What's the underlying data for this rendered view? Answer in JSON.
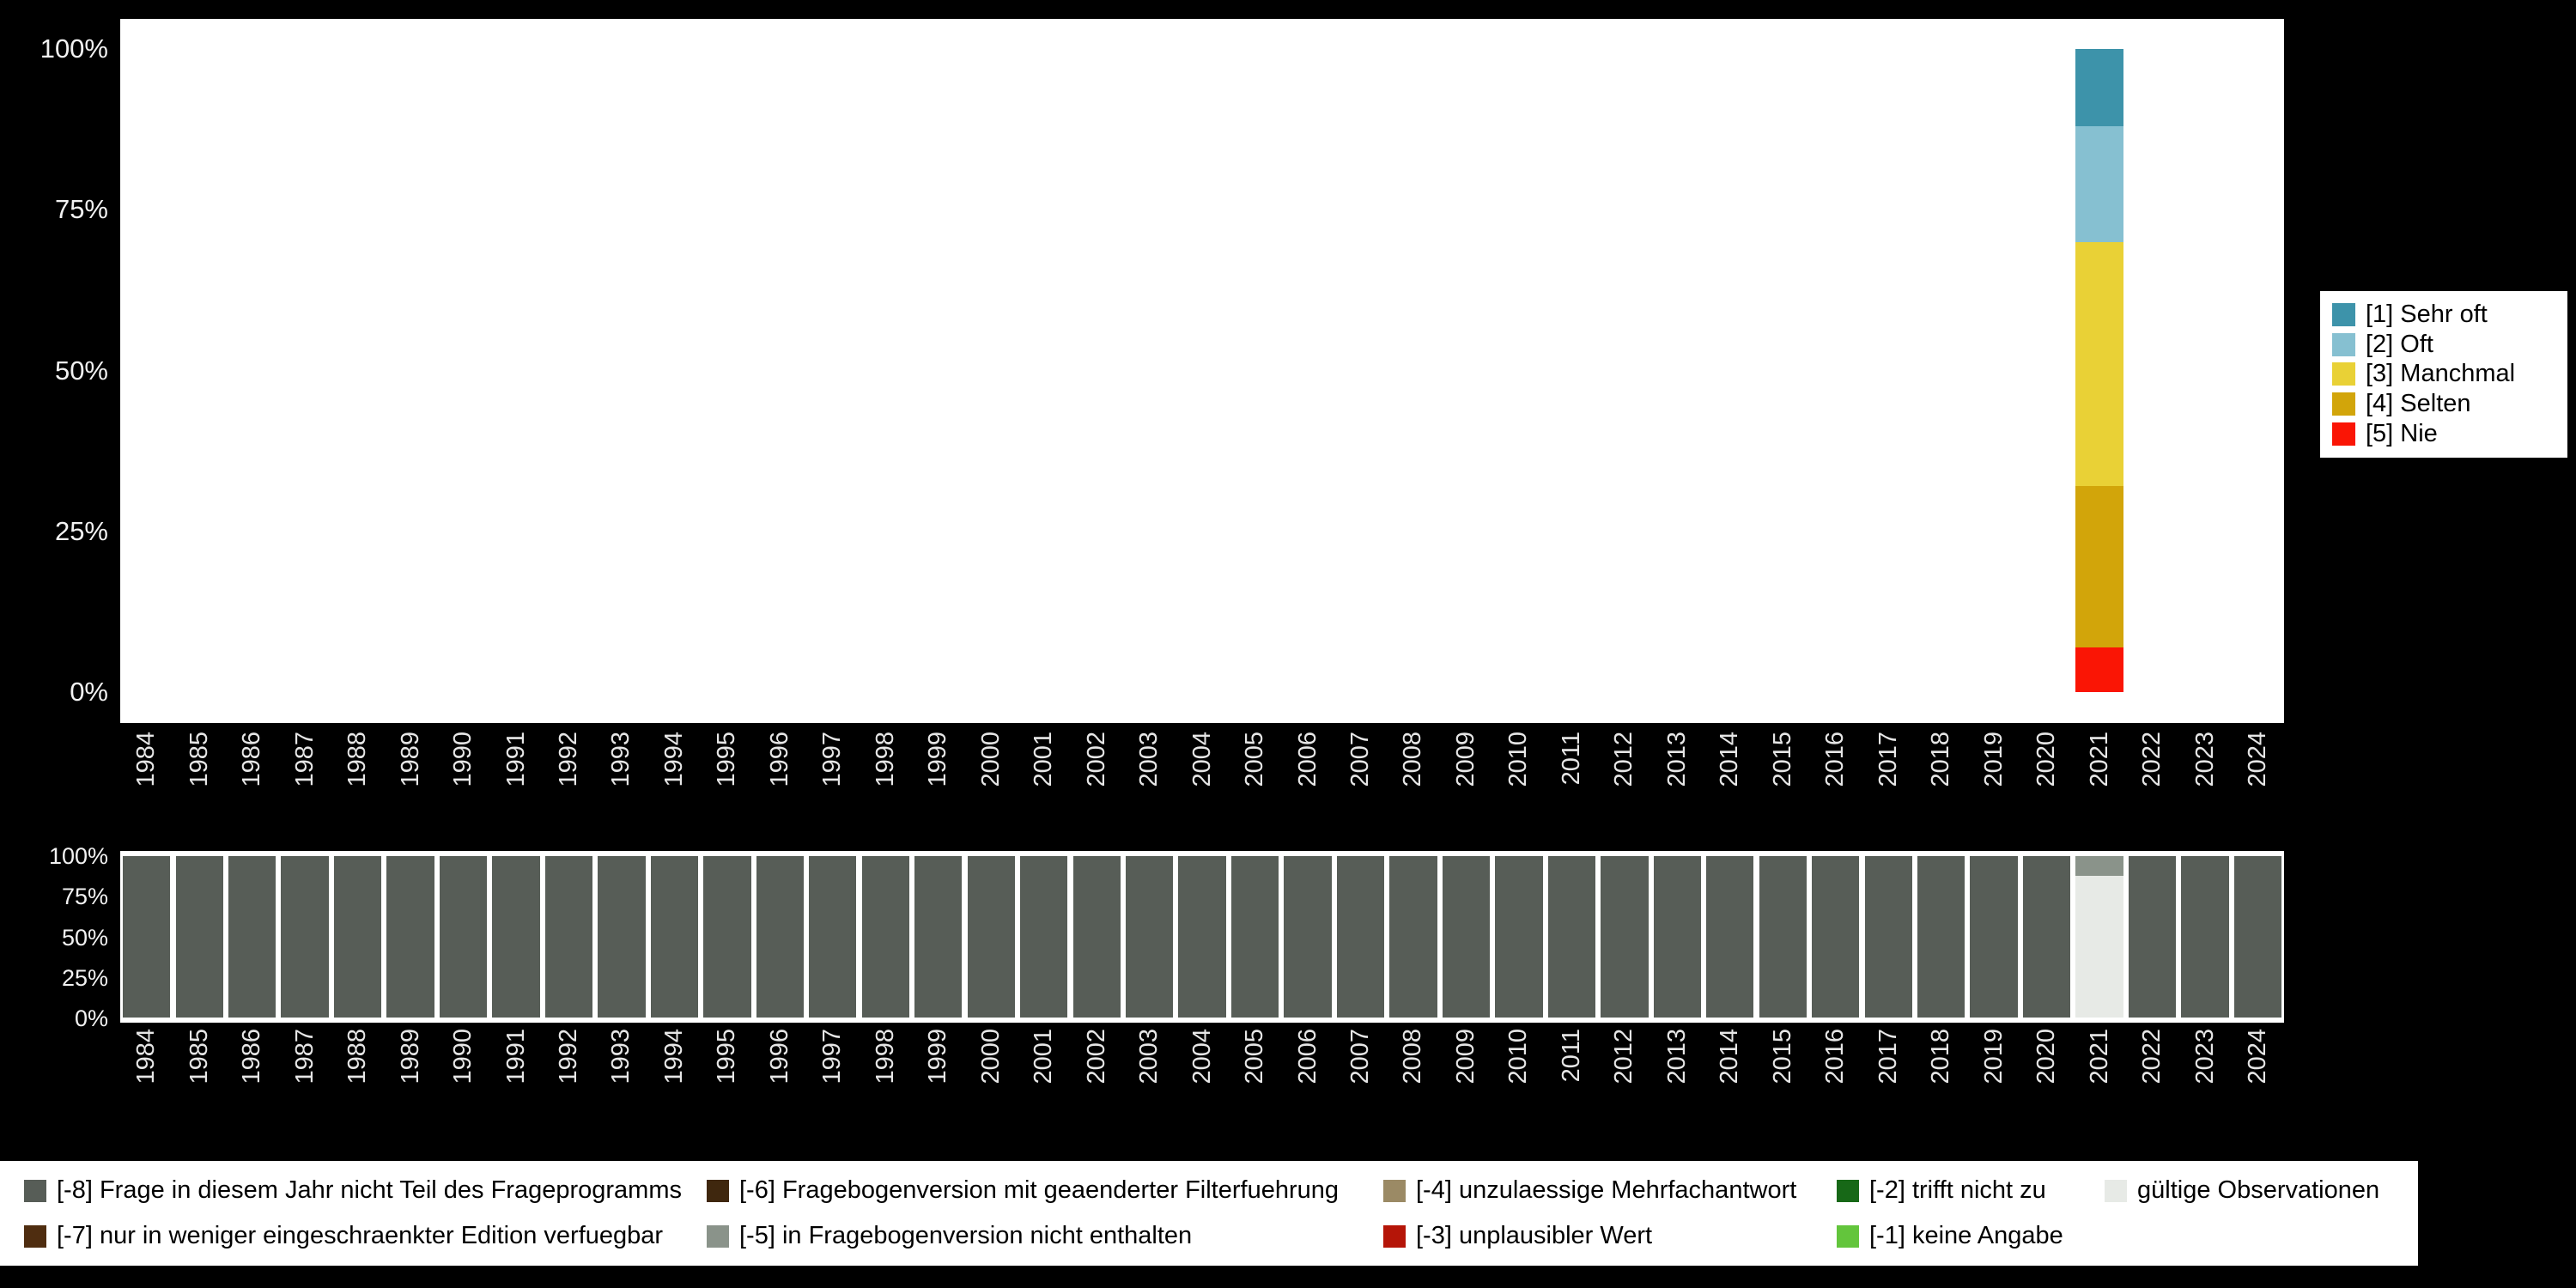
{
  "page": {
    "background": "#000000"
  },
  "axes": {
    "y_ticks": [
      "100%",
      "75%",
      "50%",
      "25%",
      "0%"
    ]
  },
  "chart_data": [
    {
      "type": "bar",
      "stacked": true,
      "title": "",
      "xlabel": "",
      "ylabel": "",
      "ylim": [
        0,
        100
      ],
      "y_tick_percents": [
        0,
        25,
        50,
        75,
        100
      ],
      "grid": false,
      "legend_position": "right",
      "x": [
        "1984",
        "1985",
        "1986",
        "1987",
        "1988",
        "1989",
        "1990",
        "1991",
        "1992",
        "1993",
        "1994",
        "1995",
        "1996",
        "1997",
        "1998",
        "1999",
        "2000",
        "2001",
        "2002",
        "2003",
        "2004",
        "2005",
        "2006",
        "2007",
        "2008",
        "2009",
        "2010",
        "2011",
        "2012",
        "2013",
        "2014",
        "2015",
        "2016",
        "2017",
        "2018",
        "2019",
        "2020",
        "2021",
        "2022",
        "2023",
        "2024"
      ],
      "series": [
        {
          "name": "[1] Sehr oft",
          "color": "#3d93aa",
          "default": 0,
          "values_by_year": {
            "2021": 12
          }
        },
        {
          "name": "[2] Oft",
          "color": "#86c0d1",
          "default": 0,
          "values_by_year": {
            "2021": 18
          }
        },
        {
          "name": "[3] Manchmal",
          "color": "#e9d136",
          "default": 0,
          "values_by_year": {
            "2021": 38
          }
        },
        {
          "name": "[4] Selten",
          "color": "#d2a50a",
          "default": 0,
          "values_by_year": {
            "2021": 25
          }
        },
        {
          "name": "[5] Nie",
          "color": "#fa1505",
          "default": 0,
          "values_by_year": {
            "2021": 7
          }
        }
      ]
    },
    {
      "type": "bar",
      "stacked": true,
      "title": "",
      "xlabel": "",
      "ylabel": "",
      "ylim": [
        0,
        100
      ],
      "y_tick_percents": [
        0,
        25,
        50,
        75,
        100
      ],
      "grid": false,
      "legend_position": "bottom",
      "x": [
        "1984",
        "1985",
        "1986",
        "1987",
        "1988",
        "1989",
        "1990",
        "1991",
        "1992",
        "1993",
        "1994",
        "1995",
        "1996",
        "1997",
        "1998",
        "1999",
        "2000",
        "2001",
        "2002",
        "2003",
        "2004",
        "2005",
        "2006",
        "2007",
        "2008",
        "2009",
        "2010",
        "2011",
        "2012",
        "2013",
        "2014",
        "2015",
        "2016",
        "2017",
        "2018",
        "2019",
        "2020",
        "2021",
        "2022",
        "2023",
        "2024"
      ],
      "series": [
        {
          "name": "[-8] Frage in diesem Jahr nicht Teil des Frageprogramms",
          "color": "#575d57",
          "default": 100,
          "values_by_year": {
            "2021": 0
          }
        },
        {
          "name": "[-5] in Fragebogenversion nicht enthalten",
          "color": "#8a938a",
          "default": 0,
          "values_by_year": {
            "2021": 12
          }
        },
        {
          "name": "gültige Observationen",
          "color": "#e7eae6",
          "default": 0,
          "values_by_year": {
            "2021": 88
          }
        }
      ]
    }
  ],
  "missings_legend": {
    "columns": [
      [
        {
          "label": "[-8] Frage in diesem Jahr nicht Teil des Frageprogramms",
          "color": "#575d57"
        },
        {
          "label": "[-7] nur in weniger eingeschraenkter Edition verfuegbar",
          "color": "#4f2d10"
        }
      ],
      [
        {
          "label": "[-6] Fragebogenversion mit geaenderter Filterfuehrung",
          "color": "#3f270e"
        },
        {
          "label": "[-5] in Fragebogenversion nicht enthalten",
          "color": "#8a938a"
        }
      ],
      [
        {
          "label": "[-4] unzulaessige Mehrfachantwort",
          "color": "#9b8a65"
        },
        {
          "label": "[-3] unplausibler Wert",
          "color": "#b51508"
        }
      ],
      [
        {
          "label": "[-2] trifft nicht zu",
          "color": "#176817"
        },
        {
          "label": "[-1] keine Angabe",
          "color": "#63c53c"
        }
      ],
      [
        {
          "label": "gültige Observationen",
          "color": "#e7eae6"
        }
      ]
    ]
  }
}
